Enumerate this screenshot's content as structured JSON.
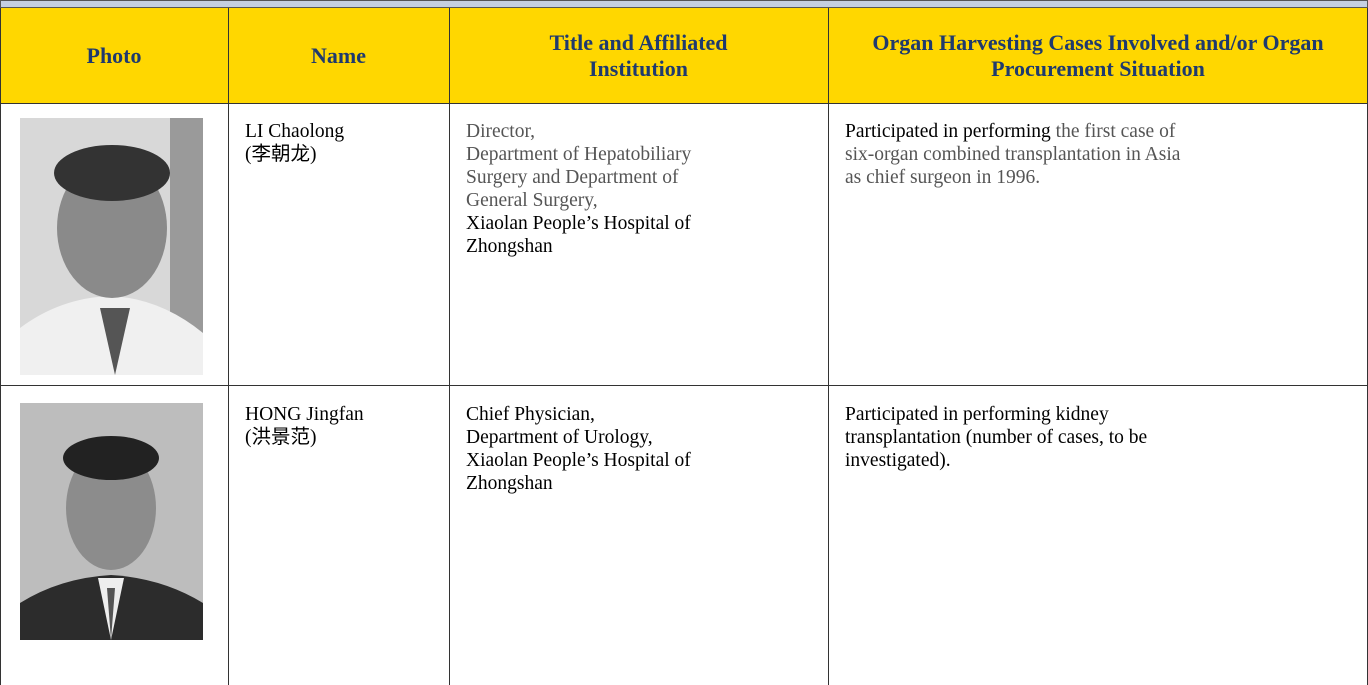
{
  "table": {
    "header": [
      "Photo",
      "Name",
      "Title and Affiliated Institution",
      "Organ Harvesting Cases Involved and/or Organ Procurement Situation"
    ],
    "rows": [
      {
        "name": [
          "LI Chaolong",
          "(李朝龙)"
        ],
        "title": [
          "Director,",
          "Department of Hepatobiliary",
          "Surgery and Department of",
          "General Surgery,",
          "Xiaolan People’s Hospital of",
          "Zhongshan"
        ],
        "cases": [
          "Participated in performing",
          "the first case of",
          "six-organ combined transplantation in Asia",
          "as chief surgeon in 1996."
        ]
      },
      {
        "name": [
          "HONG Jingfan",
          "(洪景范)"
        ],
        "title": [
          "Chief Physician,",
          "Department of Urology,",
          "Xiaolan People’s Hospital of",
          "Zhongshan"
        ],
        "cases": [
          "Participated in performing kidney",
          "transplantation (number of cases, to be",
          "investigated)."
        ]
      }
    ]
  }
}
